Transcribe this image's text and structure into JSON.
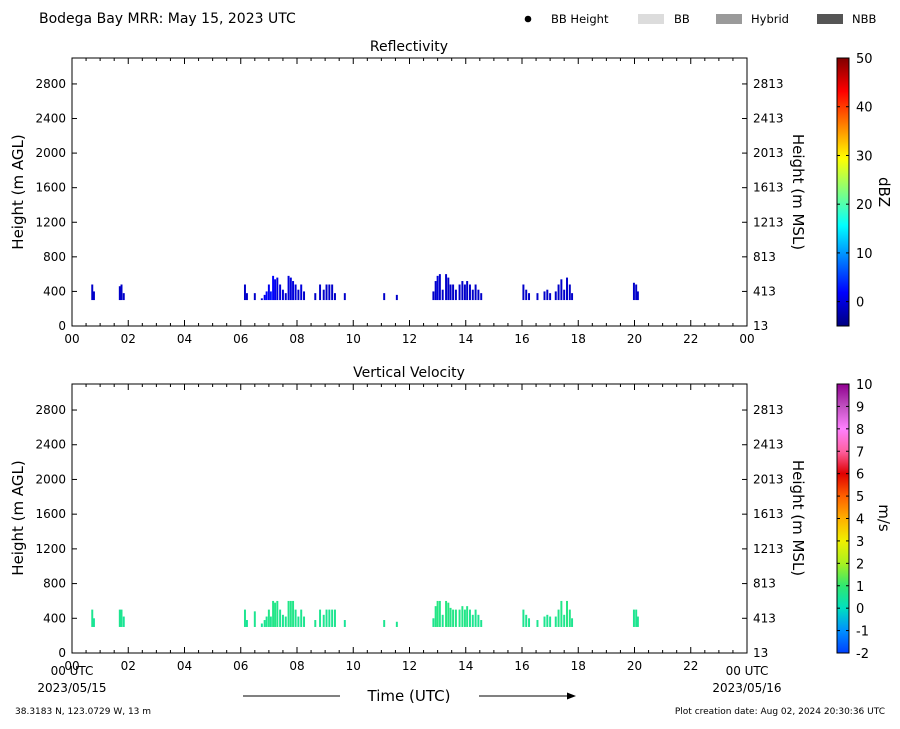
{
  "header": {
    "title": "Bodega Bay MRR:  May 15, 2023 UTC",
    "legend": [
      {
        "label": "BB Height",
        "kind": "dot",
        "color": "#000000"
      },
      {
        "label": "BB",
        "kind": "swatch",
        "color": "#dcdcdc"
      },
      {
        "label": "Hybrid",
        "kind": "swatch",
        "color": "#9a9a9a"
      },
      {
        "label": "NBB",
        "kind": "swatch",
        "color": "#555555"
      }
    ]
  },
  "footer": {
    "xlabel": "Time (UTC)",
    "start_tick": "00 UTC",
    "start_date": "2023/05/15",
    "end_tick": "00 UTC",
    "end_date": "2023/05/16",
    "location": "38.3183 N, 123.0729 W, 13 m",
    "creation": "Plot creation date: Aug 02, 2024 20:30:36 UTC"
  },
  "chart_data": [
    {
      "type": "heatmap",
      "title": "Reflectivity",
      "ylabel": "Height (m AGL)",
      "ylabel_right": "Height (m MSL)",
      "xlim": [
        0,
        24
      ],
      "ylim": [
        0,
        3100
      ],
      "x_ticks": [
        "00",
        "02",
        "04",
        "06",
        "08",
        "10",
        "12",
        "14",
        "16",
        "18",
        "20",
        "22",
        "00"
      ],
      "y_ticks": [
        0,
        400,
        800,
        1200,
        1600,
        2000,
        2400,
        2800
      ],
      "y_ticks_right": [
        "13",
        "413",
        "813",
        "1213",
        "1613",
        "2013",
        "2413",
        "2813"
      ],
      "colorbar": {
        "label": "dBZ",
        "range": [
          -5,
          50
        ],
        "ticks": [
          0,
          10,
          20,
          30,
          40,
          50
        ],
        "colors": [
          "#000080",
          "#0000ff",
          "#0080ff",
          "#00ffff",
          "#80ff80",
          "#ffff00",
          "#ff8000",
          "#ff0000",
          "#800000"
        ]
      },
      "columns": [
        {
          "t": 0.72,
          "top": 480,
          "v": -1
        },
        {
          "t": 0.78,
          "top": 400,
          "v": -1
        },
        {
          "t": 1.7,
          "top": 460,
          "v": -1
        },
        {
          "t": 1.76,
          "top": 480,
          "v": -1
        },
        {
          "t": 1.84,
          "top": 380,
          "v": -1
        },
        {
          "t": 6.15,
          "top": 480,
          "v": -1
        },
        {
          "t": 6.22,
          "top": 380,
          "v": -1
        },
        {
          "t": 6.5,
          "top": 380,
          "v": -1
        },
        {
          "t": 6.75,
          "top": 320,
          "v": -1
        },
        {
          "t": 6.85,
          "top": 360,
          "v": 1
        },
        {
          "t": 6.92,
          "top": 400,
          "v": 2
        },
        {
          "t": 7.0,
          "top": 480,
          "v": 1
        },
        {
          "t": 7.07,
          "top": 400,
          "v": 3
        },
        {
          "t": 7.15,
          "top": 580,
          "v": 2
        },
        {
          "t": 7.22,
          "top": 540,
          "v": 1
        },
        {
          "t": 7.3,
          "top": 560,
          "v": 0
        },
        {
          "t": 7.4,
          "top": 480,
          "v": 0
        },
        {
          "t": 7.5,
          "top": 420,
          "v": 0
        },
        {
          "t": 7.6,
          "top": 380,
          "v": -1
        },
        {
          "t": 7.7,
          "top": 580,
          "v": 0
        },
        {
          "t": 7.78,
          "top": 560,
          "v": 0
        },
        {
          "t": 7.86,
          "top": 520,
          "v": 0
        },
        {
          "t": 7.95,
          "top": 480,
          "v": 0
        },
        {
          "t": 8.05,
          "top": 420,
          "v": -1
        },
        {
          "t": 8.15,
          "top": 480,
          "v": 0
        },
        {
          "t": 8.25,
          "top": 400,
          "v": -1
        },
        {
          "t": 8.65,
          "top": 380,
          "v": -1
        },
        {
          "t": 8.82,
          "top": 480,
          "v": -1
        },
        {
          "t": 8.95,
          "top": 420,
          "v": -1
        },
        {
          "t": 9.05,
          "top": 480,
          "v": -1
        },
        {
          "t": 9.15,
          "top": 480,
          "v": -1
        },
        {
          "t": 9.25,
          "top": 480,
          "v": -1
        },
        {
          "t": 9.35,
          "top": 380,
          "v": -1
        },
        {
          "t": 9.7,
          "top": 380,
          "v": -1
        },
        {
          "t": 11.1,
          "top": 380,
          "v": -1
        },
        {
          "t": 11.55,
          "top": 360,
          "v": -1
        },
        {
          "t": 12.85,
          "top": 400,
          "v": -1
        },
        {
          "t": 12.93,
          "top": 520,
          "v": -1
        },
        {
          "t": 13.0,
          "top": 580,
          "v": 0
        },
        {
          "t": 13.08,
          "top": 600,
          "v": -1
        },
        {
          "t": 13.18,
          "top": 420,
          "v": -1
        },
        {
          "t": 13.3,
          "top": 600,
          "v": -1
        },
        {
          "t": 13.38,
          "top": 560,
          "v": -1
        },
        {
          "t": 13.46,
          "top": 480,
          "v": -1
        },
        {
          "t": 13.55,
          "top": 480,
          "v": -1
        },
        {
          "t": 13.65,
          "top": 420,
          "v": -1
        },
        {
          "t": 13.78,
          "top": 480,
          "v": -1
        },
        {
          "t": 13.88,
          "top": 520,
          "v": -1
        },
        {
          "t": 13.97,
          "top": 480,
          "v": -1
        },
        {
          "t": 14.05,
          "top": 520,
          "v": -1
        },
        {
          "t": 14.15,
          "top": 480,
          "v": -1
        },
        {
          "t": 14.25,
          "top": 420,
          "v": -1
        },
        {
          "t": 14.35,
          "top": 480,
          "v": -1
        },
        {
          "t": 14.45,
          "top": 420,
          "v": -1
        },
        {
          "t": 14.55,
          "top": 380,
          "v": -1
        },
        {
          "t": 16.05,
          "top": 480,
          "v": -1
        },
        {
          "t": 16.15,
          "top": 420,
          "v": -1
        },
        {
          "t": 16.25,
          "top": 380,
          "v": -1
        },
        {
          "t": 16.55,
          "top": 380,
          "v": -1
        },
        {
          "t": 16.8,
          "top": 400,
          "v": -1
        },
        {
          "t": 16.9,
          "top": 420,
          "v": -1
        },
        {
          "t": 17.0,
          "top": 380,
          "v": -1
        },
        {
          "t": 17.2,
          "top": 400,
          "v": -1
        },
        {
          "t": 17.3,
          "top": 480,
          "v": -1
        },
        {
          "t": 17.4,
          "top": 540,
          "v": -1
        },
        {
          "t": 17.5,
          "top": 420,
          "v": -1
        },
        {
          "t": 17.6,
          "top": 560,
          "v": -1
        },
        {
          "t": 17.7,
          "top": 480,
          "v": -1
        },
        {
          "t": 17.78,
          "top": 380,
          "v": -1
        },
        {
          "t": 19.98,
          "top": 500,
          "v": -1
        },
        {
          "t": 20.06,
          "top": 480,
          "v": -1
        },
        {
          "t": 20.12,
          "top": 400,
          "v": -1
        }
      ]
    },
    {
      "type": "heatmap",
      "title": "Vertical Velocity",
      "ylabel": "Height (m AGL)",
      "ylabel_right": "Height (m MSL)",
      "xlim": [
        0,
        24
      ],
      "ylim": [
        0,
        3100
      ],
      "x_ticks": [
        "00",
        "02",
        "04",
        "06",
        "08",
        "10",
        "12",
        "14",
        "16",
        "18",
        "20",
        "22"
      ],
      "y_ticks": [
        0,
        400,
        800,
        1200,
        1600,
        2000,
        2400,
        2800
      ],
      "y_ticks_right": [
        "13",
        "413",
        "813",
        "1213",
        "1613",
        "2013",
        "2413",
        "2813"
      ],
      "colorbar": {
        "label": "m/s",
        "range": [
          -2,
          10
        ],
        "ticks": [
          -2,
          -1,
          0,
          1,
          2,
          3,
          4,
          5,
          6,
          7,
          8,
          9,
          10
        ],
        "colors": [
          "#0040ff",
          "#0090ff",
          "#00e0c0",
          "#30e870",
          "#a8f020",
          "#f0f000",
          "#ffb000",
          "#ff6000",
          "#e00000",
          "#ff60a0",
          "#ff80ff",
          "#c050c0",
          "#900090"
        ]
      },
      "columns": [
        {
          "t": 0.72,
          "top": 500,
          "v": 0.6
        },
        {
          "t": 0.78,
          "top": 400,
          "v": 0.5
        },
        {
          "t": 1.7,
          "top": 500,
          "v": 0.6
        },
        {
          "t": 1.76,
          "top": 500,
          "v": 0.6
        },
        {
          "t": 1.84,
          "top": 420,
          "v": 0.5
        },
        {
          "t": 6.15,
          "top": 500,
          "v": 0.6
        },
        {
          "t": 6.22,
          "top": 380,
          "v": 0.5
        },
        {
          "t": 6.5,
          "top": 480,
          "v": 0.6
        },
        {
          "t": 6.75,
          "top": 340,
          "v": 0.5
        },
        {
          "t": 6.85,
          "top": 380,
          "v": 0.6
        },
        {
          "t": 6.92,
          "top": 420,
          "v": 0.6
        },
        {
          "t": 7.0,
          "top": 500,
          "v": 0.7
        },
        {
          "t": 7.07,
          "top": 420,
          "v": 0.6
        },
        {
          "t": 7.15,
          "top": 600,
          "v": 0.7
        },
        {
          "t": 7.22,
          "top": 580,
          "v": 0.7
        },
        {
          "t": 7.3,
          "top": 600,
          "v": 0.7
        },
        {
          "t": 7.4,
          "top": 500,
          "v": 0.6
        },
        {
          "t": 7.5,
          "top": 440,
          "v": 0.6
        },
        {
          "t": 7.6,
          "top": 420,
          "v": 0.6
        },
        {
          "t": 7.7,
          "top": 600,
          "v": 0.7
        },
        {
          "t": 7.78,
          "top": 600,
          "v": 0.7
        },
        {
          "t": 7.86,
          "top": 600,
          "v": 0.7
        },
        {
          "t": 7.95,
          "top": 500,
          "v": 0.6
        },
        {
          "t": 8.05,
          "top": 420,
          "v": 0.6
        },
        {
          "t": 8.15,
          "top": 500,
          "v": 0.6
        },
        {
          "t": 8.25,
          "top": 420,
          "v": 0.6
        },
        {
          "t": 8.65,
          "top": 380,
          "v": 0.6
        },
        {
          "t": 8.82,
          "top": 500,
          "v": 0.6
        },
        {
          "t": 8.95,
          "top": 440,
          "v": 0.6
        },
        {
          "t": 9.05,
          "top": 500,
          "v": 0.6
        },
        {
          "t": 9.15,
          "top": 500,
          "v": 0.6
        },
        {
          "t": 9.25,
          "top": 500,
          "v": 0.6
        },
        {
          "t": 9.35,
          "top": 500,
          "v": 0.6
        },
        {
          "t": 9.7,
          "top": 380,
          "v": 0.5
        },
        {
          "t": 11.1,
          "top": 380,
          "v": 0.6
        },
        {
          "t": 11.55,
          "top": 360,
          "v": 0.6
        },
        {
          "t": 12.85,
          "top": 400,
          "v": 0.6
        },
        {
          "t": 12.93,
          "top": 540,
          "v": 0.7
        },
        {
          "t": 13.0,
          "top": 600,
          "v": 0.8
        },
        {
          "t": 13.08,
          "top": 600,
          "v": 0.7
        },
        {
          "t": 13.18,
          "top": 440,
          "v": 0.6
        },
        {
          "t": 13.3,
          "top": 600,
          "v": 0.8
        },
        {
          "t": 13.38,
          "top": 580,
          "v": 0.8
        },
        {
          "t": 13.46,
          "top": 520,
          "v": 0.7
        },
        {
          "t": 13.55,
          "top": 500,
          "v": 0.7
        },
        {
          "t": 13.65,
          "top": 500,
          "v": 0.7
        },
        {
          "t": 13.78,
          "top": 500,
          "v": 0.7
        },
        {
          "t": 13.88,
          "top": 540,
          "v": 0.7
        },
        {
          "t": 13.97,
          "top": 500,
          "v": 0.7
        },
        {
          "t": 14.05,
          "top": 540,
          "v": 0.7
        },
        {
          "t": 14.15,
          "top": 500,
          "v": 0.6
        },
        {
          "t": 14.25,
          "top": 440,
          "v": 0.6
        },
        {
          "t": 14.35,
          "top": 500,
          "v": 0.6
        },
        {
          "t": 14.45,
          "top": 440,
          "v": 0.6
        },
        {
          "t": 14.55,
          "top": 380,
          "v": 0.6
        },
        {
          "t": 16.05,
          "top": 500,
          "v": 0.6
        },
        {
          "t": 16.15,
          "top": 440,
          "v": 0.6
        },
        {
          "t": 16.25,
          "top": 400,
          "v": 0.6
        },
        {
          "t": 16.55,
          "top": 380,
          "v": 0.6
        },
        {
          "t": 16.8,
          "top": 420,
          "v": 0.6
        },
        {
          "t": 16.9,
          "top": 440,
          "v": 0.6
        },
        {
          "t": 17.0,
          "top": 420,
          "v": 0.6
        },
        {
          "t": 17.2,
          "top": 420,
          "v": 0.6
        },
        {
          "t": 17.3,
          "top": 500,
          "v": 0.7
        },
        {
          "t": 17.4,
          "top": 600,
          "v": 0.7
        },
        {
          "t": 17.5,
          "top": 440,
          "v": 0.6
        },
        {
          "t": 17.6,
          "top": 600,
          "v": 0.8
        },
        {
          "t": 17.7,
          "top": 500,
          "v": 0.7
        },
        {
          "t": 17.78,
          "top": 400,
          "v": 0.6
        },
        {
          "t": 19.98,
          "top": 500,
          "v": 0.6
        },
        {
          "t": 20.06,
          "top": 500,
          "v": 0.6
        },
        {
          "t": 20.12,
          "top": 420,
          "v": 0.6
        }
      ]
    }
  ]
}
